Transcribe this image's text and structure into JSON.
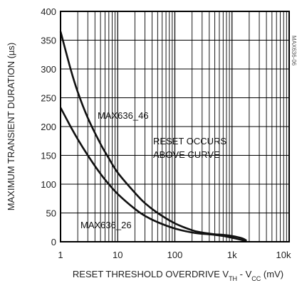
{
  "chart_data": {
    "type": "line",
    "title": "",
    "xlabel": "RESET THRESHOLD OVERDRIVE V",
    "xlabel_sub1": "TH",
    "xlabel_mid": " - V",
    "xlabel_sub2": "CC",
    "xlabel_tail": " (mV)",
    "ylabel": "MAXIMUM TRANSIENT DURATION (µs)",
    "x_scale": "log",
    "xlim": [
      1,
      10000
    ],
    "ylim": [
      0,
      400
    ],
    "grid": true,
    "legend": "none",
    "x_ticks": [
      {
        "value": 1,
        "label": "1"
      },
      {
        "value": 10,
        "label": "10"
      },
      {
        "value": 100,
        "label": "100"
      },
      {
        "value": 1000,
        "label": "1k"
      },
      {
        "value": 10000,
        "label": "10k"
      }
    ],
    "y_ticks": [
      0,
      50,
      100,
      150,
      200,
      250,
      300,
      350,
      400
    ],
    "series": [
      {
        "name": "MAX636_46",
        "x": [
          1,
          1.5,
          2,
          3,
          5,
          7,
          10,
          20,
          30,
          50,
          100,
          200,
          300,
          500,
          700,
          1000,
          1500,
          1800
        ],
        "y": [
          365,
          300,
          260,
          215,
          170,
          145,
          120,
          85,
          67,
          50,
          32,
          20,
          16,
          13,
          12,
          10,
          6,
          2
        ]
      },
      {
        "name": "MAX636_26",
        "x": [
          1,
          1.5,
          2,
          3,
          5,
          7,
          10,
          20,
          30,
          50,
          100,
          200,
          300,
          500,
          700,
          1000,
          1500,
          1800
        ],
        "y": [
          233,
          200,
          178,
          150,
          118,
          100,
          83,
          57,
          45,
          34,
          23,
          16,
          14,
          12,
          10,
          7,
          3,
          1
        ]
      }
    ],
    "annotations": [
      {
        "text": "MAX636_46"
      },
      {
        "text": "RESET OCCURS"
      },
      {
        "text": "ABOVE CURVE"
      },
      {
        "text": "MAX636_26"
      }
    ],
    "side_code": "MAX636-06"
  }
}
